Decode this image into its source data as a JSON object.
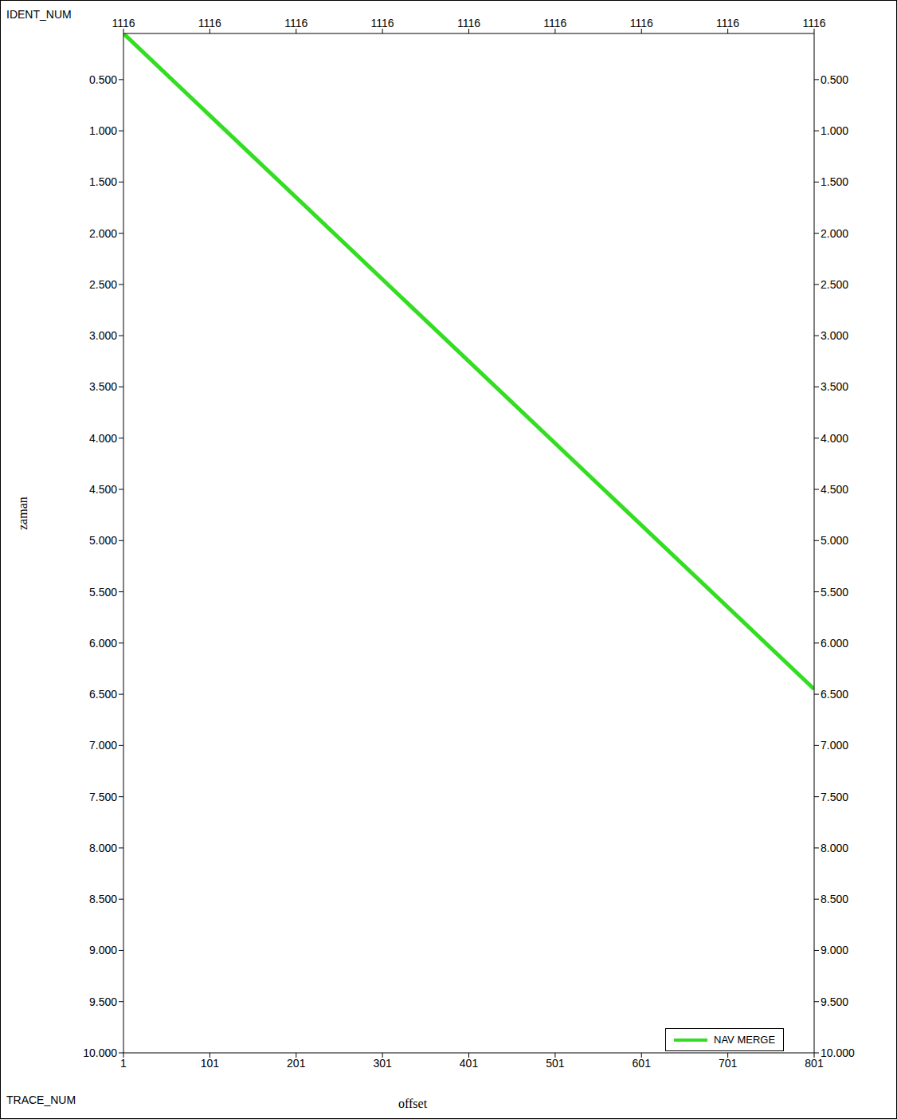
{
  "chart_data": {
    "type": "line",
    "x_label": "offset",
    "y_label": "zaman",
    "top_axis_label": "IDENT_NUM",
    "bottom_axis_label": "TRACE_NUM",
    "x": [
      1,
      801
    ],
    "xlim": [
      1,
      801
    ],
    "xticks": [
      1,
      101,
      201,
      301,
      401,
      501,
      601,
      701,
      801
    ],
    "top_xticks": [
      {
        "value": 1,
        "label": "1116"
      },
      {
        "value": 101,
        "label": "1116"
      },
      {
        "value": 201,
        "label": "1116"
      },
      {
        "value": 301,
        "label": "1116"
      },
      {
        "value": 401,
        "label": "1116"
      },
      {
        "value": 501,
        "label": "1116"
      },
      {
        "value": 601,
        "label": "1116"
      },
      {
        "value": 701,
        "label": "1116"
      },
      {
        "value": 801,
        "label": "1116"
      }
    ],
    "ylim": [
      0.05,
      10
    ],
    "yticks": [
      {
        "value": 0.5,
        "label": "0.500"
      },
      {
        "value": 1,
        "label": "1.000"
      },
      {
        "value": 1.5,
        "label": "1.500"
      },
      {
        "value": 2,
        "label": "2.000"
      },
      {
        "value": 2.5,
        "label": "2.500"
      },
      {
        "value": 3,
        "label": "3.000"
      },
      {
        "value": 3.5,
        "label": "3.500"
      },
      {
        "value": 4,
        "label": "4.000"
      },
      {
        "value": 4.5,
        "label": "4.500"
      },
      {
        "value": 5,
        "label": "5.000"
      },
      {
        "value": 5.5,
        "label": "5.500"
      },
      {
        "value": 6,
        "label": "6.000"
      },
      {
        "value": 6.5,
        "label": "6.500"
      },
      {
        "value": 7,
        "label": "7.000"
      },
      {
        "value": 7.5,
        "label": "7.500"
      },
      {
        "value": 8,
        "label": "8.000"
      },
      {
        "value": 8.5,
        "label": "8.500"
      },
      {
        "value": 9,
        "label": "9.000"
      },
      {
        "value": 9.5,
        "label": "9.500"
      },
      {
        "value": 10,
        "label": "10.000"
      }
    ],
    "series": [
      {
        "name": "NAV MERGE",
        "color": "#33dd22",
        "values": [
          0.05,
          6.45
        ]
      }
    ],
    "legend": "lower right",
    "grid": false
  }
}
